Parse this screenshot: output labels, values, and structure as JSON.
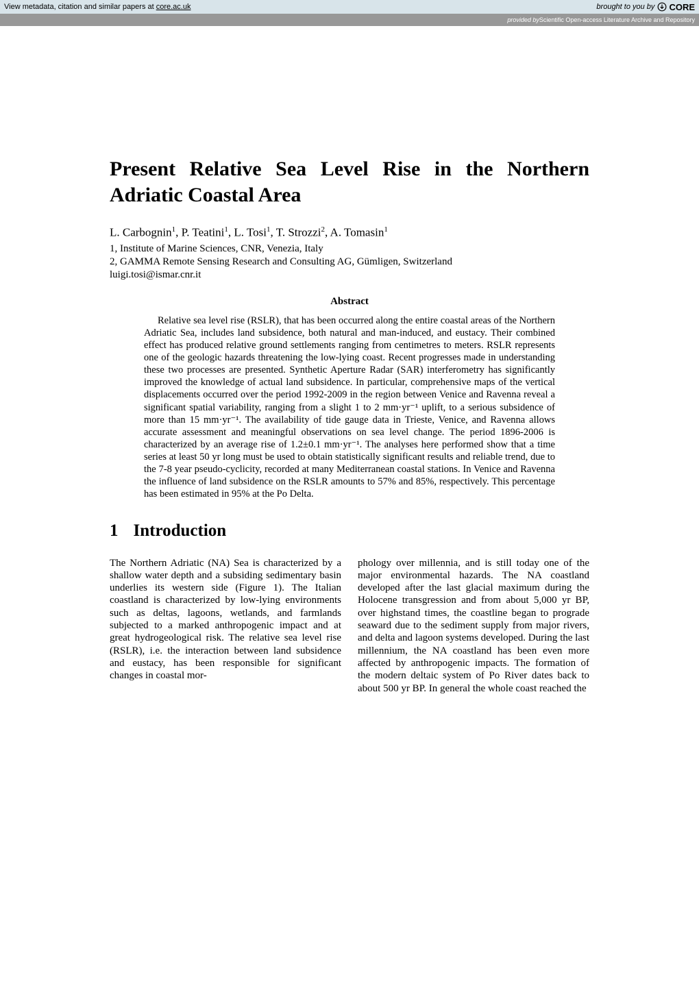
{
  "banner": {
    "left_text": "View metadata, citation and similar papers at ",
    "left_link": "core.ac.uk",
    "right_prefix": "brought to you by",
    "core_text": "CORE"
  },
  "sub_banner": {
    "prefix": "provided by ",
    "provider": "Scientific Open-access Literature Archive and Repository"
  },
  "title": "Present Relative Sea Level Rise in the Northern Adriatic Coastal Area",
  "authors_html": "L. Carbognin<sup>1</sup>, P. Teatini<sup>1</sup>, L. Tosi<sup>1</sup>, T. Strozzi<sup>2</sup>, A. Tomasin<sup>1</sup>",
  "affiliations": [
    "1, Institute of Marine Sciences, CNR, Venezia, Italy",
    "2, GAMMA Remote Sensing Research and Consulting AG, Gümligen, Switzerland"
  ],
  "email": "luigi.tosi@ismar.cnr.it",
  "abstract": {
    "heading": "Abstract",
    "body": "Relative sea level rise (RSLR), that has been occurred along the entire coastal areas of the Northern Adriatic Sea, includes land subsidence, both natural and man-induced, and eustacy. Their combined effect has produced relative ground settlements ranging from centimetres to meters. RSLR represents one of the geologic hazards threatening the low-lying coast. Recent progresses made in understanding these two processes are presented. Synthetic Aperture Radar (SAR) interferometry has significantly improved the knowledge of actual land subsidence. In particular, comprehensive maps of the vertical displacements occurred over the period 1992-2009 in the region between Venice and Ravenna reveal a significant spatial variability, ranging from a slight 1 to 2 mm·yr⁻¹ uplift, to a serious subsidence of more than 15 mm·yr⁻¹. The availability of tide gauge data in Trieste, Venice, and Ravenna allows accurate assessment and meaningful observations on sea level change. The period 1896-2006 is characterized by an average rise of 1.2±0.1 mm·yr⁻¹. The analyses here performed show that a time series at least 50 yr long must be used to obtain statistically significant results and reliable trend, due to the 7-8 year pseudo-cyclicity, recorded at many Mediterranean coastal stations. In Venice and Ravenna the influence of land subsidence on the RSLR amounts to 57% and 85%, respectively. This percentage has been estimated in 95% at the Po Delta."
  },
  "section1": {
    "number": "1",
    "heading": "Introduction",
    "col_left": "The Northern Adriatic (NA) Sea is characterized by a shallow water depth and a subsiding sedimentary basin underlies its western side (Figure 1). The Italian coastland is characterized by low-lying environments such as deltas, lagoons, wetlands, and farmlands subjected to a marked anthropogenic impact and at great hydrogeological risk. The relative sea level rise (RSLR), i.e. the interaction between land subsidence and eustacy, has been responsible for significant changes in coastal mor-",
    "col_right": "phology over millennia, and is still today one of the major environmental hazards. The NA coastland developed after the last glacial maximum during the Holocene transgression and from about 5,000 yr BP, over highstand times, the coastline began to prograde seaward due to the sediment supply from major rivers, and delta and lagoon systems developed. During the last millennium, the NA coastland has been even more affected by anthropogenic impacts. The formation of the modern deltaic system of Po River dates back to about 500 yr BP. In general the whole coast reached the"
  }
}
